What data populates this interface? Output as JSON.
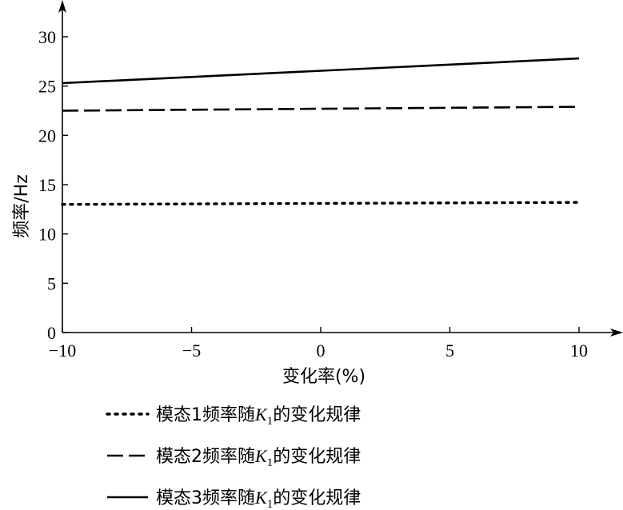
{
  "chart_data": {
    "type": "line",
    "x": [
      -10,
      10
    ],
    "xlabel": "变化率(%)",
    "ylabel": "频率/Hz",
    "xlim": [
      -10,
      10
    ],
    "ylim": [
      0,
      30
    ],
    "xticks": [
      -10,
      -5,
      0,
      5,
      10
    ],
    "yticks": [
      0,
      5,
      10,
      15,
      20,
      25,
      30
    ],
    "xtick_labels": [
      "−10",
      "−5",
      "0",
      "5",
      "10"
    ],
    "ytick_labels": [
      "0",
      "5",
      "10",
      "15",
      "20",
      "25",
      "30"
    ],
    "grid": false,
    "legend_position": "bottom",
    "series": [
      {
        "name_prefix": "模态1频率随",
        "name_var": "K",
        "name_sub": "1",
        "name_suffix": "的变化规律",
        "style": "dotted",
        "values": [
          13.0,
          13.2
        ]
      },
      {
        "name_prefix": "模态2频率随",
        "name_var": "K",
        "name_sub": "1",
        "name_suffix": "的变化规律",
        "style": "dashed",
        "values": [
          22.5,
          22.9
        ]
      },
      {
        "name_prefix": "模态3频率随",
        "name_var": "K",
        "name_sub": "1",
        "name_suffix": "的变化规律",
        "style": "solid",
        "values": [
          25.3,
          27.8
        ]
      }
    ]
  }
}
